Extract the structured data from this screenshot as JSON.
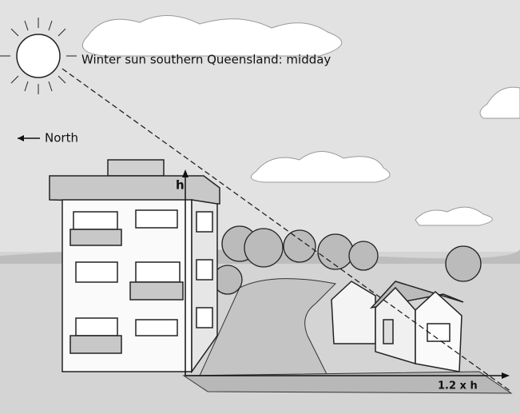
{
  "labels": {
    "sun": "Winter sun southern Queensland:  midday",
    "north": "North",
    "height": "h",
    "distance": "1.2 x h"
  }
}
